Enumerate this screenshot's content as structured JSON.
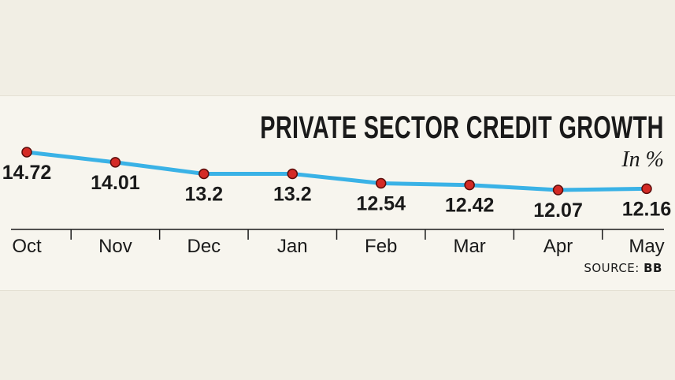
{
  "chart_data": {
    "type": "line",
    "title": "PRIVATE SECTOR CREDIT GROWTH",
    "unit_label": "In %",
    "categories": [
      "Oct",
      "Nov",
      "Dec",
      "Jan",
      "Feb",
      "Mar",
      "Apr",
      "May"
    ],
    "values": [
      14.72,
      14.01,
      13.2,
      13.2,
      12.54,
      12.42,
      12.07,
      12.16
    ],
    "value_labels": [
      "14.72",
      "14.01",
      "13.2",
      "13.2",
      "12.54",
      "12.42",
      "12.07",
      "12.16"
    ],
    "line_color": "#3ab2e6",
    "marker_color": "#d42a25",
    "source_prefix": "SOURCE:",
    "source_name": "BB",
    "grid": false,
    "legend": "none"
  }
}
